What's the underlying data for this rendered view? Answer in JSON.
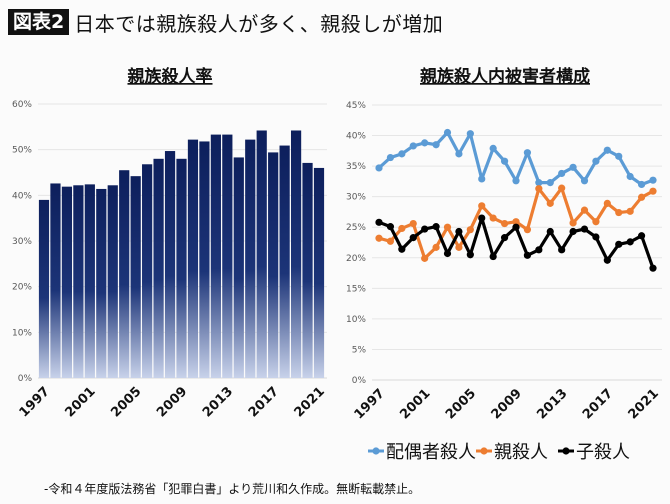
{
  "header": {
    "badge": "図表2",
    "title": "日本では親族殺人が多く、親殺しが増加"
  },
  "footnote": "-令和４年度版法務省「犯罪白書」より荒川和久作成。無断転載禁止。",
  "chart_data": [
    {
      "type": "bar",
      "title": "親族殺人率",
      "categories": [
        1997,
        1998,
        1999,
        2000,
        2001,
        2002,
        2003,
        2004,
        2005,
        2006,
        2007,
        2008,
        2009,
        2010,
        2011,
        2012,
        2013,
        2014,
        2015,
        2016,
        2017,
        2018,
        2019,
        2020,
        2021
      ],
      "x_tick_labels": [
        "1997",
        "2001",
        "2005",
        "2009",
        "2013",
        "2017",
        "2021"
      ],
      "values": [
        39.0,
        42.6,
        41.9,
        42.2,
        42.4,
        41.4,
        42.2,
        45.5,
        44.2,
        46.8,
        48.0,
        49.7,
        48.0,
        52.2,
        51.8,
        53.3,
        53.3,
        48.3,
        52.2,
        54.2,
        49.4,
        50.9,
        54.2,
        47.1,
        46.0
      ],
      "ylim": [
        0,
        60
      ],
      "y_ticks": [
        "0%",
        "10%",
        "20%",
        "30%",
        "40%",
        "50%",
        "60%"
      ],
      "grid": true,
      "color": "#0d1f5c"
    },
    {
      "type": "line",
      "title": "親族殺人内被害者構成",
      "x": [
        1997,
        1998,
        1999,
        2000,
        2001,
        2002,
        2003,
        2004,
        2005,
        2006,
        2007,
        2008,
        2009,
        2010,
        2011,
        2012,
        2013,
        2014,
        2015,
        2016,
        2017,
        2018,
        2019,
        2020,
        2021
      ],
      "x_tick_labels": [
        "1997",
        "2001",
        "2005",
        "2009",
        "2013",
        "2017",
        "2021"
      ],
      "ylim": [
        0,
        45
      ],
      "y_ticks": [
        "0%",
        "5%",
        "10%",
        "15%",
        "20%",
        "25%",
        "30%",
        "35%",
        "40%",
        "45%"
      ],
      "grid": true,
      "legend_position": "bottom",
      "series": [
        {
          "name": "配偶者殺人",
          "color": "#5b9bd5",
          "values": [
            34.7,
            36.4,
            37.0,
            38.3,
            38.8,
            38.5,
            40.5,
            37.0,
            40.3,
            32.9,
            37.9,
            35.8,
            32.6,
            37.2,
            32.3,
            32.3,
            33.8,
            34.8,
            32.6,
            35.8,
            37.6,
            36.6,
            33.3,
            32.0,
            32.7
          ]
        },
        {
          "name": "親殺人",
          "color": "#ed7d31",
          "values": [
            23.2,
            22.7,
            24.8,
            25.6,
            19.9,
            21.7,
            25.0,
            21.7,
            24.6,
            28.5,
            26.5,
            25.6,
            25.9,
            24.6,
            31.3,
            28.9,
            31.4,
            25.7,
            27.8,
            25.9,
            28.9,
            27.4,
            27.6,
            29.9,
            30.9
          ]
        },
        {
          "name": "子殺人",
          "color": "#000000",
          "values": [
            25.8,
            25.1,
            21.4,
            23.3,
            24.7,
            25.1,
            20.7,
            24.3,
            20.5,
            26.5,
            20.2,
            23.3,
            25.0,
            20.4,
            21.3,
            24.3,
            21.3,
            24.3,
            24.7,
            23.4,
            19.6,
            22.2,
            22.6,
            23.6,
            18.3
          ]
        }
      ]
    }
  ]
}
